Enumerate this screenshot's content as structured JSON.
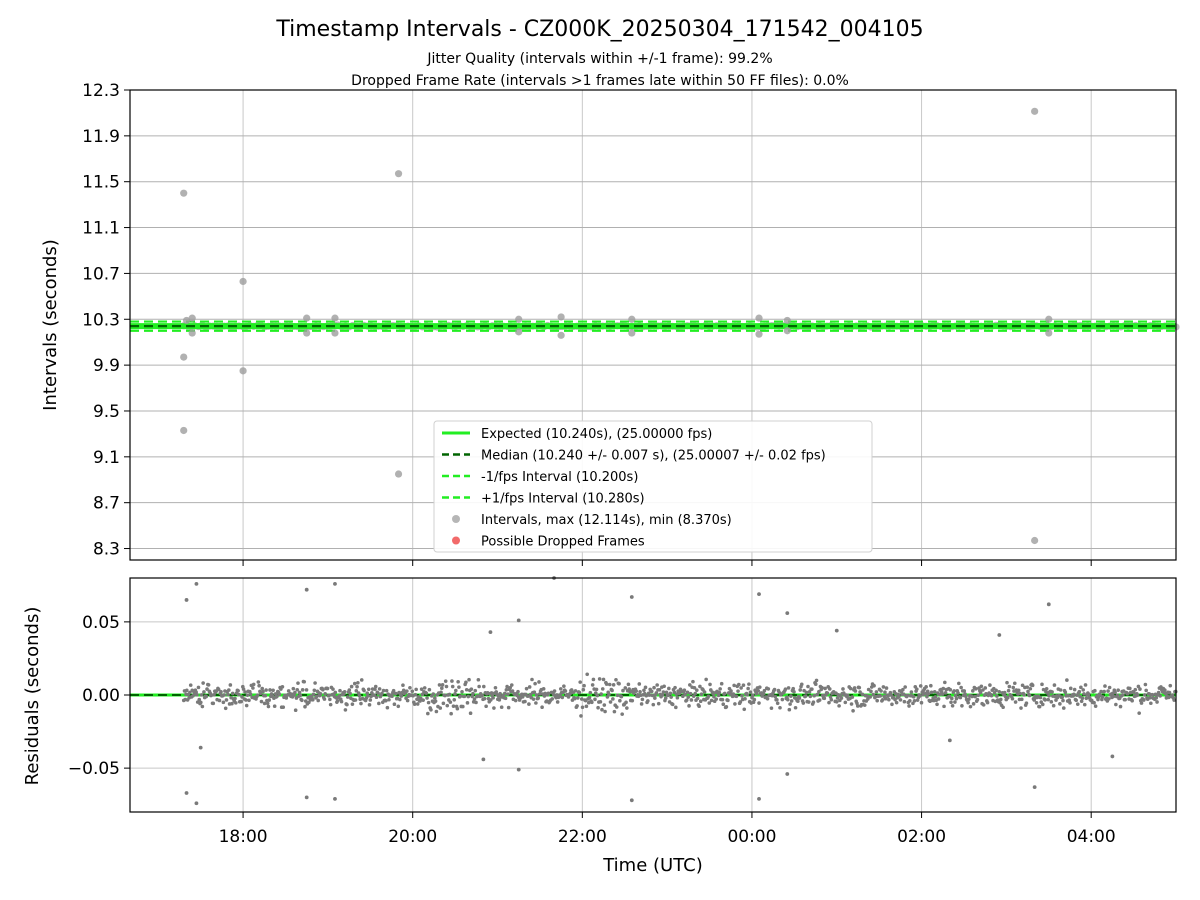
{
  "chart_data": [
    {
      "type": "scatter",
      "title": "Timestamp Intervals - CZ000K_20250304_171542_004105",
      "subtitle_lines": [
        "Jitter Quality (intervals within +/-1 frame): 99.2%",
        "Dropped Frame Rate (intervals >1 frames late within 50 FF files): 0.0%"
      ],
      "xlabel": "",
      "ylabel": "Intervals (seconds)",
      "ylim": [
        8.2,
        12.3
      ],
      "yticks": [
        "8.3",
        "8.7",
        "9.1",
        "9.5",
        "9.9",
        "10.3",
        "10.7",
        "11.1",
        "11.5",
        "11.9",
        "12.3"
      ],
      "grid": true,
      "legend_position": "bottom-center",
      "lines": [
        {
          "name": "Expected (10.240s), (25.00000 fps)",
          "value": 10.24,
          "color": "#22ee22",
          "style": "solid"
        },
        {
          "name": "Median (10.240 +/- 0.007 s), (25.00007 +/- 0.02 fps)",
          "value": 10.24,
          "color": "#006400",
          "style": "dashed"
        },
        {
          "name": "-1/fps Interval (10.200s)",
          "value": 10.2,
          "color": "#22ee22",
          "style": "dashed"
        },
        {
          "name": "+1/fps Interval (10.280s)",
          "value": 10.28,
          "color": "#22ee22",
          "style": "dashed"
        }
      ],
      "series": [
        {
          "name": "Intervals, max (12.114s), min (8.370s)",
          "color": "#9e9e9e",
          "points": [
            [
              "17:18",
              11.4
            ],
            [
              "17:18",
              9.97
            ],
            [
              "17:18",
              9.33
            ],
            [
              "17:20",
              10.29
            ],
            [
              "17:24",
              10.18
            ],
            [
              "17:24",
              10.31
            ],
            [
              "18:00",
              10.63
            ],
            [
              "18:00",
              9.85
            ],
            [
              "18:45",
              10.31
            ],
            [
              "18:45",
              10.18
            ],
            [
              "19:05",
              10.31
            ],
            [
              "19:05",
              10.18
            ],
            [
              "19:50",
              11.57
            ],
            [
              "19:50",
              8.95
            ],
            [
              "21:15",
              10.3
            ],
            [
              "21:15",
              10.19
            ],
            [
              "21:45",
              10.32
            ],
            [
              "21:45",
              10.16
            ],
            [
              "22:35",
              10.3
            ],
            [
              "22:35",
              10.18
            ],
            [
              "00:05",
              10.31
            ],
            [
              "00:05",
              10.17
            ],
            [
              "00:25",
              10.29
            ],
            [
              "00:25",
              10.2
            ],
            [
              "03:20",
              12.114
            ],
            [
              "03:20",
              8.37
            ],
            [
              "03:30",
              10.3
            ],
            [
              "03:30",
              10.18
            ]
          ]
        },
        {
          "name": "Possible Dropped Frames",
          "color": "#f05050",
          "points": []
        }
      ]
    },
    {
      "type": "scatter",
      "title": "",
      "xlabel": "Time (UTC)",
      "ylabel": "Residuals (seconds)",
      "ylim": [
        -0.08,
        0.08
      ],
      "yticks": [
        "−0.05",
        "0.00",
        "0.05"
      ],
      "xlim": [
        "16:40",
        "05:00"
      ],
      "xticks": [
        "18:00",
        "20:00",
        "22:00",
        "00:00",
        "02:00",
        "04:00"
      ],
      "grid": true,
      "series": [
        {
          "name": "",
          "color": "#7a7a7a",
          "points": [
            [
              "17:20",
              0.065
            ],
            [
              "17:27",
              0.076
            ],
            [
              "18:45",
              0.072
            ],
            [
              "19:05",
              0.076
            ],
            [
              "21:40",
              0.08
            ],
            [
              "22:35",
              0.067
            ],
            [
              "00:05",
              0.069
            ],
            [
              "00:25",
              0.056
            ],
            [
              "03:30",
              0.062
            ],
            [
              "20:55",
              0.043
            ],
            [
              "21:15",
              0.051
            ],
            [
              "01:00",
              0.044
            ],
            [
              "02:55",
              0.041
            ],
            [
              "03:20",
              -0.063
            ],
            [
              "17:20",
              -0.067
            ],
            [
              "17:27",
              -0.074
            ],
            [
              "18:45",
              -0.07
            ],
            [
              "19:05",
              -0.071
            ],
            [
              "21:15",
              -0.051
            ],
            [
              "22:35",
              -0.072
            ],
            [
              "00:05",
              -0.071
            ],
            [
              "00:25",
              -0.054
            ],
            [
              "20:50",
              -0.044
            ],
            [
              "04:15",
              -0.042
            ],
            [
              "17:30",
              -0.036
            ],
            [
              "02:20",
              -0.031
            ]
          ]
        }
      ],
      "lines": [
        {
          "name": "Expected",
          "value": 0.0,
          "color": "#22ee22",
          "style": "solid"
        },
        {
          "name": "Median",
          "value": 0.0,
          "color": "#006400",
          "style": "dashed"
        }
      ]
    }
  ]
}
